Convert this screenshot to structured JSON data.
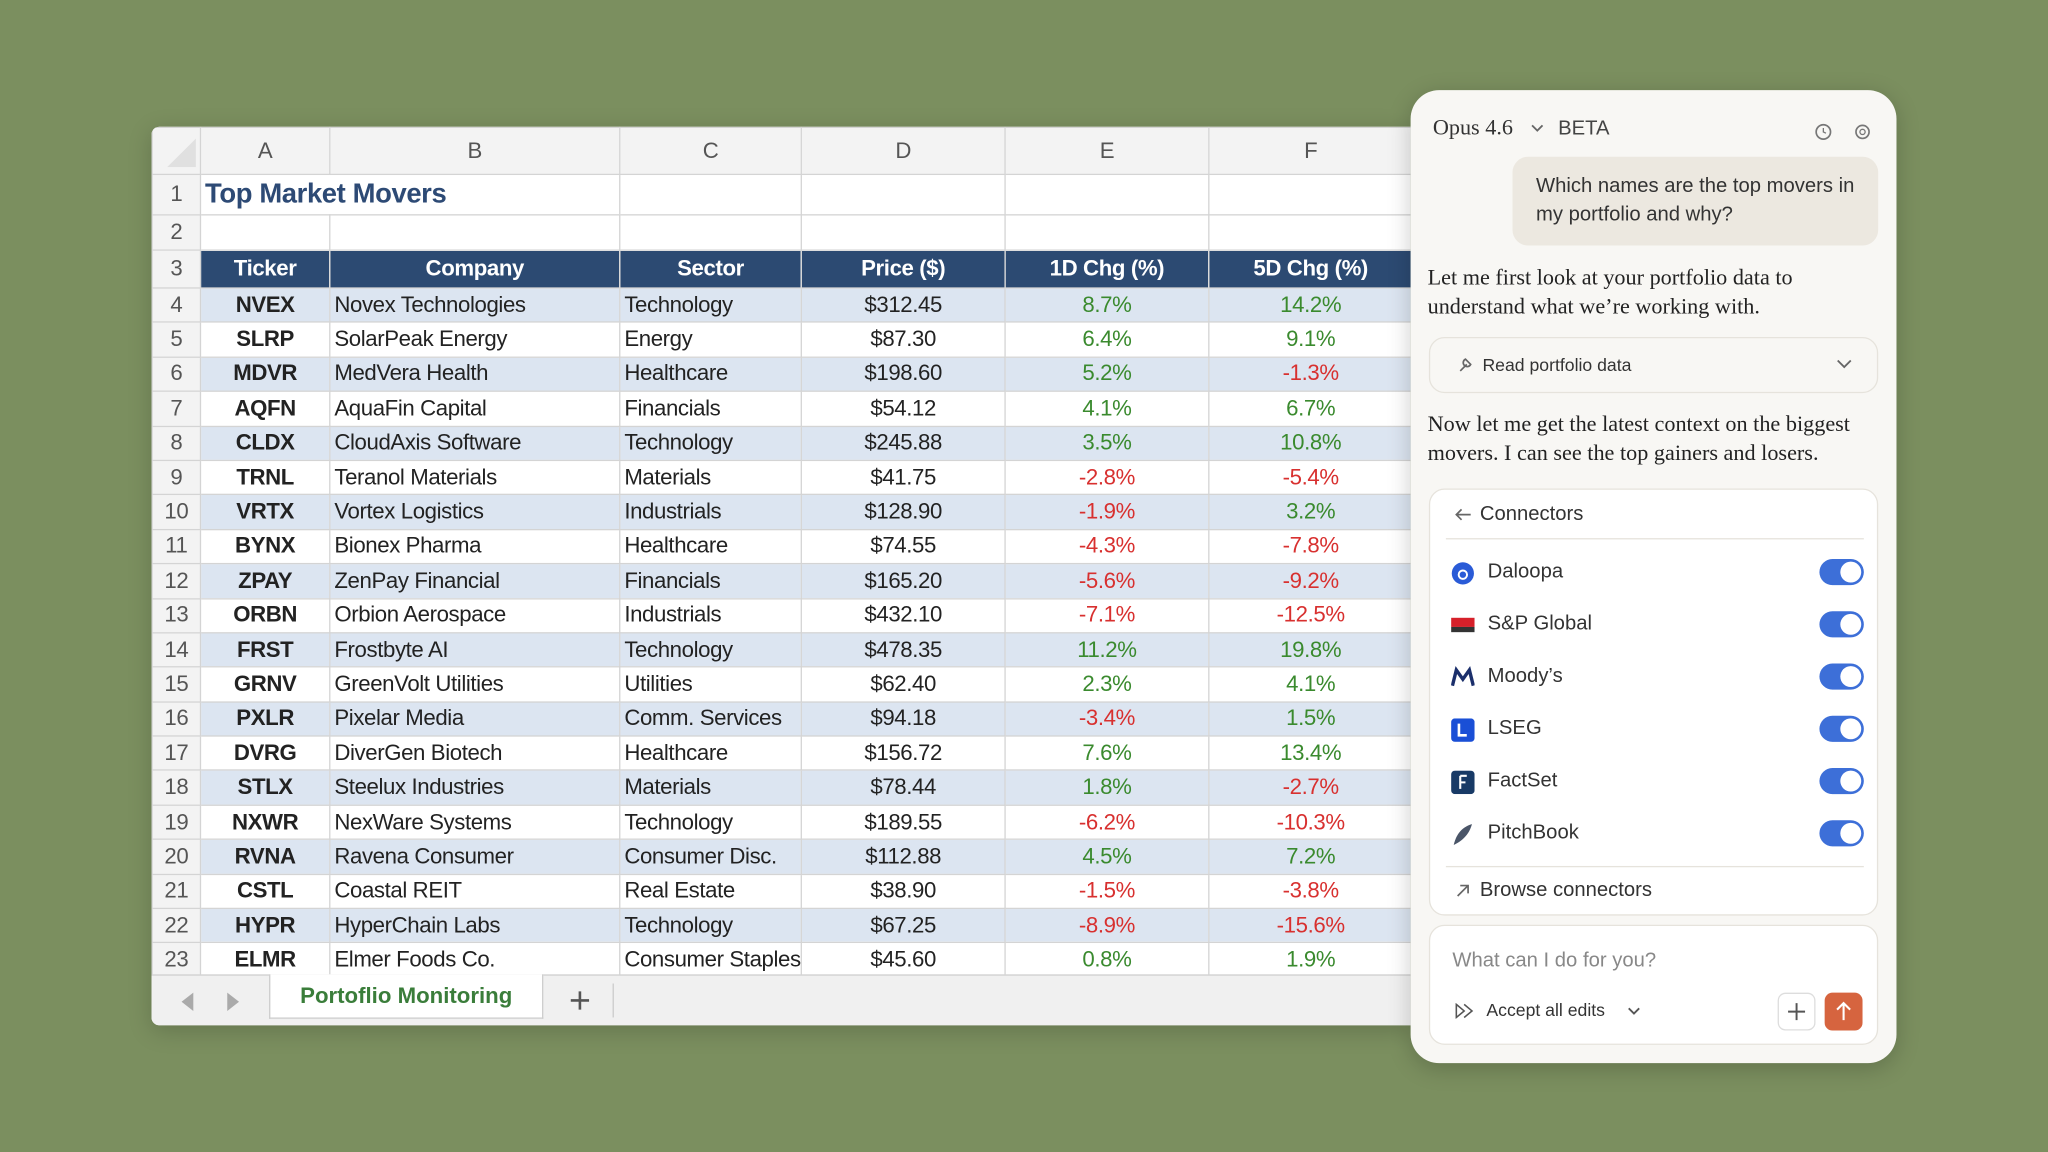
{
  "spreadsheet": {
    "column_letters": [
      "A",
      "B",
      "C",
      "D",
      "E",
      "F"
    ],
    "row_numbers": [
      1,
      2,
      3,
      4,
      5,
      6,
      7,
      8,
      9,
      10,
      11,
      12,
      13,
      14,
      15,
      16,
      17,
      18,
      19,
      20,
      21,
      22,
      23
    ],
    "title": "Top Market Movers",
    "table": {
      "header": [
        "Ticker",
        "Company",
        "Sector",
        "Price ($)",
        "1D Chg (%)",
        "5D Chg (%)"
      ],
      "rows": [
        [
          "NVEX",
          "Novex Technologies",
          "Technology",
          "$312.45",
          "8.7%",
          "14.2%"
        ],
        [
          "SLRP",
          "SolarPeak Energy",
          "Energy",
          "$87.30",
          "6.4%",
          "9.1%"
        ],
        [
          "MDVR",
          "MedVera Health",
          "Healthcare",
          "$198.60",
          "5.2%",
          "-1.3%"
        ],
        [
          "AQFN",
          "AquaFin Capital",
          "Financials",
          "$54.12",
          "4.1%",
          "6.7%"
        ],
        [
          "CLDX",
          "CloudAxis Software",
          "Technology",
          "$245.88",
          "3.5%",
          "10.8%"
        ],
        [
          "TRNL",
          "Teranol Materials",
          "Materials",
          "$41.75",
          "-2.8%",
          "-5.4%"
        ],
        [
          "VRTX",
          "Vortex Logistics",
          "Industrials",
          "$128.90",
          "-1.9%",
          "3.2%"
        ],
        [
          "BYNX",
          "Bionex Pharma",
          "Healthcare",
          "$74.55",
          "-4.3%",
          "-7.8%"
        ],
        [
          "ZPAY",
          "ZenPay Financial",
          "Financials",
          "$165.20",
          "-5.6%",
          "-9.2%"
        ],
        [
          "ORBN",
          "Orbion Aerospace",
          "Industrials",
          "$432.10",
          "-7.1%",
          "-12.5%"
        ],
        [
          "FRST",
          "Frostbyte AI",
          "Technology",
          "$478.35",
          "11.2%",
          "19.8%"
        ],
        [
          "GRNV",
          "GreenVolt Utilities",
          "Utilities",
          "$62.40",
          "2.3%",
          "4.1%"
        ],
        [
          "PXLR",
          "Pixelar Media",
          "Comm. Services",
          "$94.18",
          "-3.4%",
          "1.5%"
        ],
        [
          "DVRG",
          "DiverGen Biotech",
          "Healthcare",
          "$156.72",
          "7.6%",
          "13.4%"
        ],
        [
          "STLX",
          "Steelux Industries",
          "Materials",
          "$78.44",
          "1.8%",
          "-2.7%"
        ],
        [
          "NXWR",
          "NexWare Systems",
          "Technology",
          "$189.55",
          "-6.2%",
          "-10.3%"
        ],
        [
          "RVNA",
          "Ravena Consumer",
          "Consumer Disc.",
          "$112.88",
          "4.5%",
          "7.2%"
        ],
        [
          "CSTL",
          "Coastal REIT",
          "Real Estate",
          "$38.90",
          "-1.5%",
          "-3.8%"
        ],
        [
          "HYPR",
          "HyperChain Labs",
          "Technology",
          "$67.25",
          "-8.9%",
          "-15.6%"
        ],
        [
          "ELMR",
          "Elmer Foods Co.",
          "Consumer Staples",
          "$45.60",
          "0.8%",
          "1.9%"
        ]
      ]
    },
    "sheet_tab": "Portoflio Monitoring"
  },
  "chat": {
    "model": "Opus 4.6",
    "badge": "BETA",
    "user_message": "Which names are the top movers in my portfolio and why?",
    "assistant_1": "Let me first look at your portfolio data to understand what we’re working with.",
    "tool_call": "Read portfolio data",
    "assistant_2": "Now let me get the latest context on the biggest movers. I can see the top gainers and losers.",
    "connectors": {
      "title": "Connectors",
      "items": [
        {
          "name": "Daloopa",
          "enabled": true
        },
        {
          "name": "S&P Global",
          "enabled": true
        },
        {
          "name": "Moody’s",
          "enabled": true
        },
        {
          "name": "LSEG",
          "enabled": true
        },
        {
          "name": "FactSet",
          "enabled": true
        },
        {
          "name": "PitchBook",
          "enabled": true
        }
      ],
      "browse": "Browse connectors"
    },
    "input_placeholder": "What can I do for you?",
    "accept_edits": "Accept all edits"
  }
}
